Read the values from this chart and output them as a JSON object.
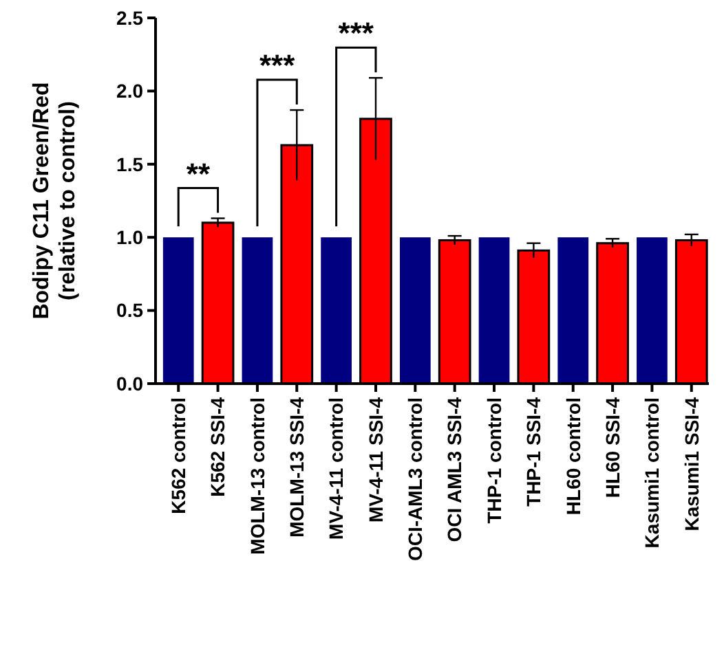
{
  "chart_data": {
    "type": "bar",
    "ylabel": "Bodipy C11 Green/Red\n(relative to control)",
    "categories": [
      "K562 control",
      "K562 SSI-4",
      "MOLM-13 control",
      "MOLM-13 SSI-4",
      "MV-4-11 control",
      "MV-4-11 SSI-4",
      "OCI-AML3 control",
      "OCI AML3 SSI-4",
      "THP-1 control",
      "THP-1 SSI-4",
      "HL60 control",
      "HL60 SSI-4",
      "Kasumi1 control",
      "Kasumi1 SSI-4"
    ],
    "values": [
      1,
      1.1,
      1,
      1.63,
      1,
      1.81,
      1,
      0.98,
      1,
      0.91,
      1,
      0.96,
      1,
      0.98
    ],
    "errors": [
      null,
      0.03,
      null,
      0.24,
      null,
      0.28,
      null,
      0.03,
      null,
      0.05,
      null,
      0.03,
      null,
      0.04
    ],
    "colors": [
      "#000080",
      "#ff0000",
      "#000080",
      "#ff0000",
      "#000080",
      "#ff0000",
      "#000080",
      "#ff0000",
      "#000080",
      "#ff0000",
      "#000080",
      "#ff0000",
      "#000080",
      "#ff0000"
    ],
    "ylim": [
      0,
      2.5
    ],
    "yticks": [
      {
        "value": 0,
        "label": "0.0"
      },
      {
        "value": 0.5,
        "label": "0.5"
      },
      {
        "value": 1,
        "label": "1.0"
      },
      {
        "value": 1.5,
        "label": "1.5"
      },
      {
        "value": 2,
        "label": "2.0"
      },
      {
        "value": 2.5,
        "label": "2.5"
      }
    ],
    "grid": false,
    "annotations": [
      "**",
      "***",
      "***"
    ]
  }
}
